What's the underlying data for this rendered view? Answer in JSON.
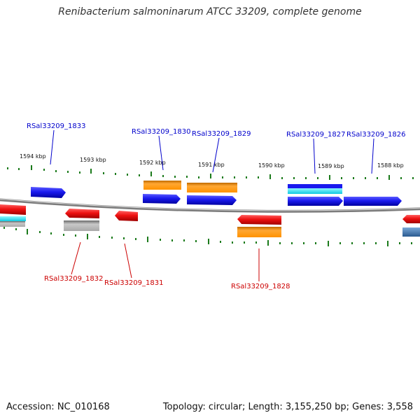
{
  "title": "Renibacterium salmoninarum ATCC 33209, complete genome",
  "accession": "Accession: NC_010168",
  "summary": "Topology: circular; Length: 3,155,250 bp; Genes: 3,558",
  "colors": {
    "backbone": "#8a8a8a",
    "tick": "#1b7a1b",
    "forward_label": "#0000cc",
    "reverse_label": "#cc0000",
    "forward_gene": "#1a1aee",
    "reverse_gene": "#ee1111",
    "orange": "#ff9900",
    "cyan": "#22e0f0",
    "gray": "#b8b8b8",
    "steel": "#4a7ab0"
  },
  "ticks": [
    {
      "label": "1594 kbp",
      "major": true
    },
    {
      "label": "1593 kbp",
      "major": true
    },
    {
      "label": "1592 kbp",
      "major": true
    },
    {
      "label": "1591 kbp",
      "major": true
    },
    {
      "label": "1590 kbp",
      "major": true
    },
    {
      "label": "1589 kbp",
      "major": true
    },
    {
      "label": "1588 kbp",
      "major": true
    }
  ],
  "forward_genes": [
    {
      "locus": "RSal33209_1833",
      "strand": "+"
    },
    {
      "locus": "RSal33209_1830",
      "strand": "+"
    },
    {
      "locus": "RSal33209_1829",
      "strand": "+"
    },
    {
      "locus": "RSal33209_1827",
      "strand": "+"
    },
    {
      "locus": "RSal33209_1826",
      "strand": "+"
    }
  ],
  "reverse_genes": [
    {
      "locus": "RSal33209_1832",
      "strand": "-"
    },
    {
      "locus": "RSal33209_1831",
      "strand": "-"
    },
    {
      "locus": "RSal33209_1828",
      "strand": "-"
    }
  ]
}
